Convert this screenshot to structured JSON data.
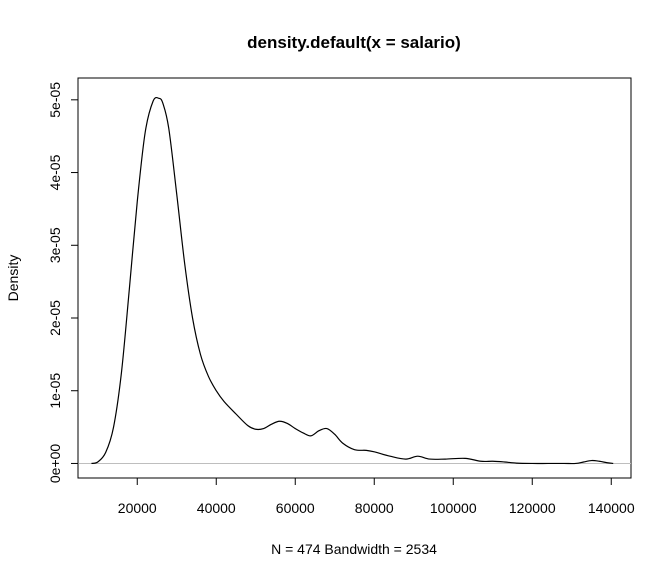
{
  "chart_data": {
    "type": "line",
    "title": "density.default(x = salario)",
    "xlabel": "N = 474   Bandwidth = 2534",
    "ylabel": "Density",
    "xlim": [
      5000,
      145000
    ],
    "ylim": [
      -2e-06,
      5.3e-05
    ],
    "x_ticks": [
      20000,
      40000,
      60000,
      80000,
      100000,
      120000,
      140000
    ],
    "x_tick_labels": [
      "20000",
      "40000",
      "60000",
      "80000",
      "100000",
      "120000",
      "140000"
    ],
    "y_ticks": [
      0,
      1e-05,
      2e-05,
      3e-05,
      4e-05,
      5e-05
    ],
    "y_tick_labels": [
      "0e+00",
      "1e-05",
      "2e-05",
      "3e-05",
      "4e-05",
      "5e-05"
    ],
    "baseline": {
      "y": 0,
      "color": "#bebebe"
    },
    "grid": false,
    "line_color": "#000000",
    "series": [
      {
        "x": [
          8400,
          10000,
          12000,
          14000,
          16000,
          18000,
          20000,
          22000,
          24000,
          25500,
          26500,
          28000,
          30000,
          32000,
          34000,
          36000,
          38000,
          40000,
          42000,
          45000,
          48000,
          50000,
          52000,
          54000,
          56000,
          58000,
          60000,
          62000,
          64000,
          66000,
          68000,
          70000,
          72000,
          75000,
          78000,
          80000,
          84000,
          88000,
          91000,
          94000,
          98000,
          103000,
          107000,
          110000,
          113000,
          116000,
          120000,
          124000,
          128000,
          131000,
          133000,
          135000,
          137000,
          139000,
          140500
        ],
        "y": [
          0,
          2e-07,
          1.5e-06,
          5e-06,
          1.25e-05,
          2.4e-05,
          3.6e-05,
          4.55e-05,
          4.98e-05,
          5.02e-05,
          4.95e-05,
          4.6e-05,
          3.7e-05,
          2.75e-05,
          2e-05,
          1.5e-05,
          1.2e-05,
          1e-05,
          8.5e-06,
          6.8e-06,
          5.2e-06,
          4.7e-06,
          4.8e-06,
          5.4e-06,
          5.8e-06,
          5.5e-06,
          4.8e-06,
          4.2e-06,
          3.8e-06,
          4.5e-06,
          4.8e-06,
          4e-06,
          2.8e-06,
          1.9e-06,
          1.8e-06,
          1.6e-06,
          1e-06,
          6e-07,
          1e-06,
          6e-07,
          6e-07,
          7e-07,
          3e-07,
          3e-07,
          2e-07,
          5e-08,
          0,
          0,
          0,
          0,
          2e-07,
          4e-07,
          3e-07,
          1e-07,
          0
        ]
      }
    ]
  }
}
